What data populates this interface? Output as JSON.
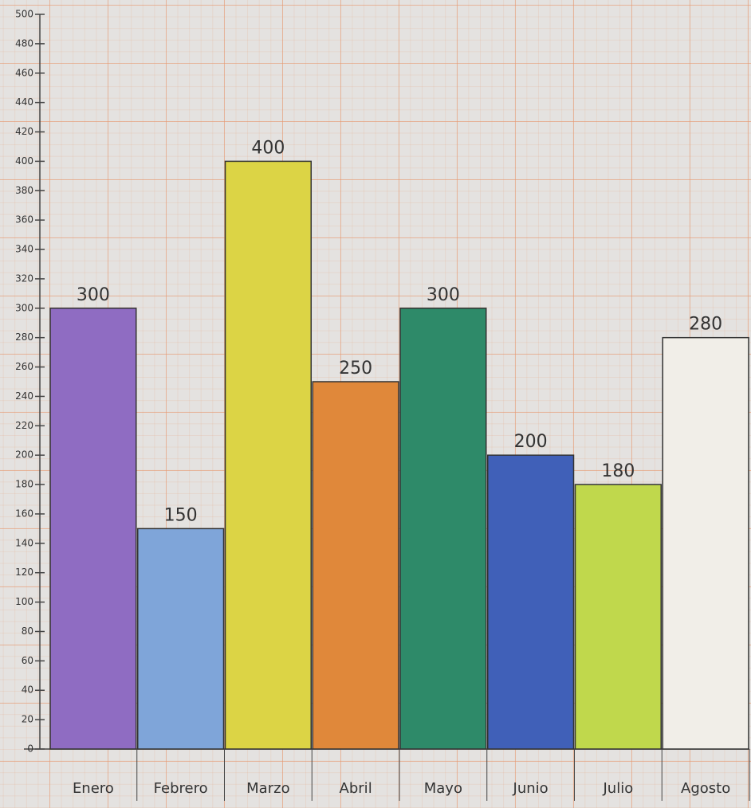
{
  "chart_data": {
    "type": "bar",
    "categories": [
      "Enero",
      "Febrero",
      "Marzo",
      "Abril",
      "Mayo",
      "Junio",
      "Julio",
      "Agosto"
    ],
    "values": [
      300,
      150,
      400,
      250,
      300,
      200,
      180,
      280
    ],
    "colors": [
      "#8f6cc2",
      "#7fa5d9",
      "#dcd445",
      "#e0883a",
      "#2e8a69",
      "#4060b8",
      "#c0d84c",
      "#f1eee8"
    ],
    "ylim": [
      0,
      500
    ],
    "yticks": [
      0,
      20,
      40,
      60,
      80,
      100,
      120,
      140,
      160,
      180,
      200,
      220,
      240,
      260,
      280,
      300,
      320,
      340,
      360,
      380,
      400,
      420,
      440,
      460,
      480,
      500
    ]
  }
}
